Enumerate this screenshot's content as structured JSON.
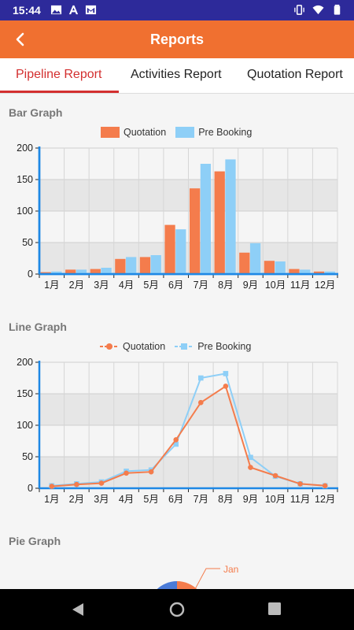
{
  "status": {
    "time": "15:44"
  },
  "appbar": {
    "title": "Reports"
  },
  "tabs": [
    {
      "label": "Pipeline Report",
      "active": true
    },
    {
      "label": "Activities Report",
      "active": false
    },
    {
      "label": "Quotation Report",
      "active": false
    }
  ],
  "sections": {
    "bar_title": "Bar Graph",
    "line_title": "Line Graph",
    "pie_title": "Pie Graph"
  },
  "legend": {
    "quotation": "Quotation",
    "prebooking": "Pre Booking"
  },
  "colors": {
    "quotation": "#f47c4c",
    "prebooking": "#8ecff7",
    "accent": "#f07030",
    "axis": "#1e88e5",
    "status": "#2d2a9a"
  },
  "chart_data": [
    {
      "type": "bar",
      "title": "Bar Graph",
      "categories": [
        "1月",
        "2月",
        "3月",
        "4月",
        "5月",
        "6月",
        "7月",
        "8月",
        "9月",
        "10月",
        "11月",
        "12月"
      ],
      "series": [
        {
          "name": "Quotation",
          "values": [
            3,
            7,
            8,
            24,
            27,
            78,
            136,
            163,
            34,
            21,
            8,
            4
          ]
        },
        {
          "name": "Pre Booking",
          "values": [
            4,
            7,
            10,
            27,
            30,
            71,
            175,
            182,
            49,
            20,
            7,
            4
          ]
        }
      ],
      "ylim": [
        0,
        200
      ],
      "yticks": [
        0,
        50,
        100,
        150,
        200
      ],
      "legend": "top-center"
    },
    {
      "type": "line",
      "title": "Line Graph",
      "categories": [
        "1月",
        "2月",
        "3月",
        "4月",
        "5月",
        "6月",
        "7月",
        "8月",
        "9月",
        "10月",
        "11月",
        "12月"
      ],
      "series": [
        {
          "name": "Quotation",
          "values": [
            3,
            6,
            8,
            24,
            26,
            77,
            136,
            162,
            33,
            20,
            7,
            4
          ]
        },
        {
          "name": "Pre Booking",
          "values": [
            4,
            7,
            10,
            27,
            29,
            70,
            175,
            182,
            49,
            19,
            7,
            4
          ]
        }
      ],
      "ylim": [
        0,
        200
      ],
      "yticks": [
        0,
        50,
        100,
        150,
        200
      ],
      "legend": "top-center"
    },
    {
      "type": "pie",
      "title": "Pie Graph",
      "labels": [
        "Jan"
      ]
    }
  ]
}
